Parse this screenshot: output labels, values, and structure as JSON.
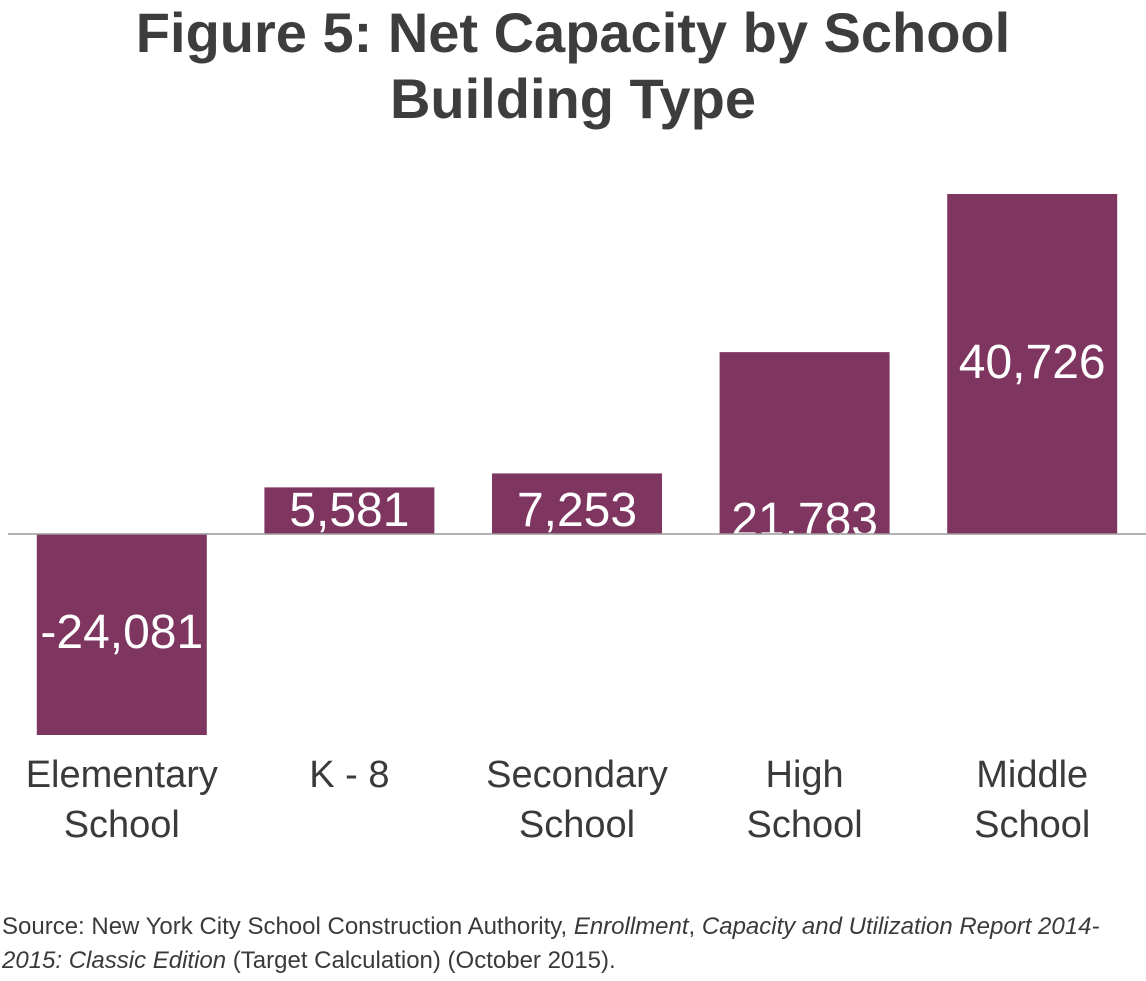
{
  "title_lines": [
    "Figure 5: Net Capacity by School",
    "Building Type"
  ],
  "colors": {
    "bar": "#7e3560",
    "bar_label": "#ffffff",
    "axis_line": "#9a9a9a",
    "text": "#3a3a3a"
  },
  "chart_data": {
    "type": "bar",
    "title": "Figure 5: Net Capacity by School Building Type",
    "categories": [
      [
        "Elementary",
        "School"
      ],
      [
        "K - 8"
      ],
      [
        "Secondary",
        "School"
      ],
      [
        "High",
        "School"
      ],
      [
        "Middle",
        "School"
      ]
    ],
    "values": [
      -24081,
      5581,
      7253,
      21783,
      40726
    ],
    "data_labels": [
      "-24,081",
      "5,581",
      "7,253",
      "21,783",
      "40,726"
    ],
    "xlabel": "",
    "ylabel": "",
    "ylim": [
      -24081,
      40726
    ],
    "grid": false,
    "legend": "none"
  },
  "source": {
    "prefix": "Source: New York City School Construction Authority, ",
    "italic1": "Enrollment",
    "mid": ", ",
    "italic2": "Capacity and Utilization Report 2014-2015: Classic Edition",
    "suffix": " (Target Calculation) (October 2015)."
  }
}
